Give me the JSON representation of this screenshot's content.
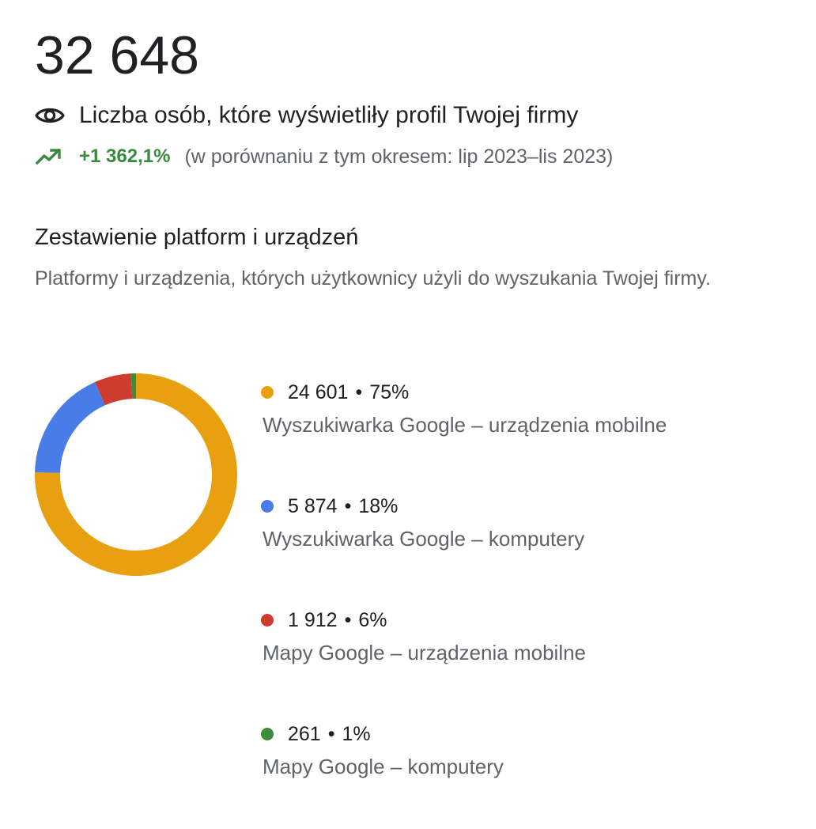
{
  "summary": {
    "total": "32 648",
    "metric_label": "Liczba osób, które wyświetliły profil Twojej firmy",
    "metric_icon": "eye-icon",
    "change": "+1 362,1%",
    "change_icon": "trending-up-icon",
    "comparison": "(w porównaniu z tym okresem: lip 2023–lis 2023)",
    "change_color": "#3a8a3e"
  },
  "section": {
    "title": "Zestawienie platform i urządzeń",
    "subtitle": "Platformy i urządzenia, których użytkownicy użyli do wyszukania Twojej firmy."
  },
  "chart_data": {
    "type": "pie",
    "variant": "donut",
    "legend_position": "right",
    "categories": [
      "Wyszukiwarka Google – urządzenia mobilne",
      "Wyszukiwarka Google – komputery",
      "Mapy Google – urządzenia mobilne",
      "Mapy Google – komputery"
    ],
    "values": [
      24601,
      5874,
      1912,
      261
    ],
    "value_labels": [
      "24 601",
      "5 874",
      "1 912",
      "261"
    ],
    "percent_labels": [
      "75%",
      "18%",
      "6%",
      "1%"
    ],
    "separator": "•",
    "colors": [
      "#e8a010",
      "#4a7ce8",
      "#cf3b2f",
      "#3d8b3d"
    ]
  }
}
